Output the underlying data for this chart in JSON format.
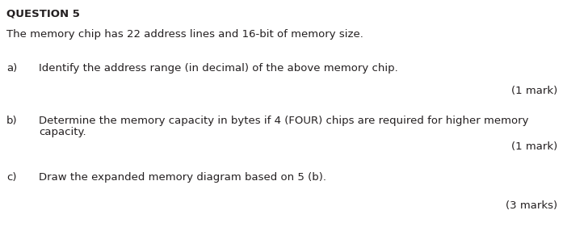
{
  "title": "QUESTION 5",
  "intro": "The memory chip has 22 address lines and 16-bit of memory size.",
  "q_a_label": "a)",
  "q_a_text": "Identify the address range (in decimal) of the above memory chip.",
  "q_a_mark": "(1 mark)",
  "q_b_label": "b)",
  "q_b_line1": "Determine the memory capacity in bytes if 4 (FOUR) chips are required for higher memory",
  "q_b_line2": "capacity.",
  "q_b_mark": "(1 mark)",
  "q_c_label": "c)",
  "q_c_text": "Draw the expanded memory diagram based on 5 (b).",
  "q_c_mark": "(3 marks)",
  "bg_color": "#ffffff",
  "text_color": "#231f20",
  "title_fontsize": 9.5,
  "body_fontsize": 9.5,
  "fig_width": 7.02,
  "fig_height": 2.97
}
